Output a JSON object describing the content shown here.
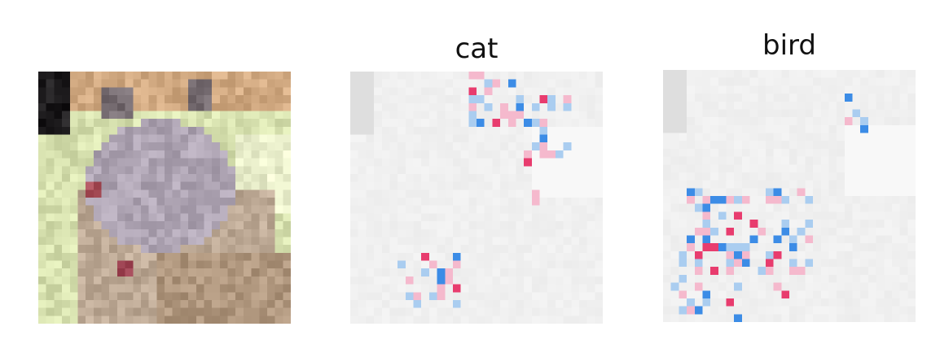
{
  "panels": [
    {
      "id": "original",
      "title": ""
    },
    {
      "id": "cat",
      "title": "cat"
    },
    {
      "id": "bird",
      "title": "bird"
    }
  ],
  "colors": {
    "background": "#ffffff",
    "attribution_positive": "#e8336a",
    "attribution_negative": "#3b8ee8",
    "faded_image": "#f0f0f0"
  }
}
